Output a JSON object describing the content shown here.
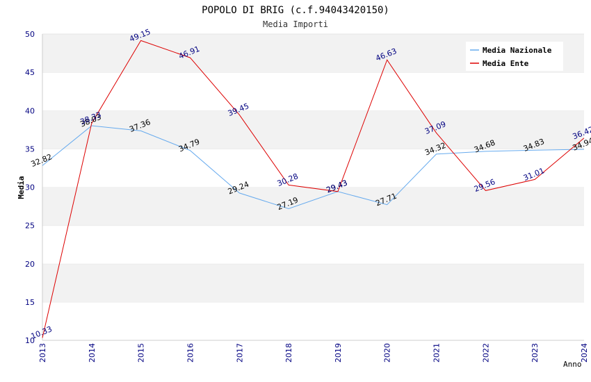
{
  "chart_data": {
    "type": "line",
    "title": "POPOLO DI BRIG (c.f.94043420150)",
    "subtitle": "Media Importi",
    "xlabel": "Anno",
    "ylabel": "Media",
    "ylim": [
      10,
      50
    ],
    "yticks": [
      10,
      15,
      20,
      25,
      30,
      35,
      40,
      45,
      50
    ],
    "x": [
      "2013",
      "2014",
      "2015",
      "2016",
      "2017",
      "2018",
      "2019",
      "2020",
      "2021",
      "2022",
      "2023",
      "2024"
    ],
    "grid": true,
    "legend_position": "top-right",
    "series": [
      {
        "name": "Media Nazionale",
        "color": "#66aaee",
        "label_color": "#000000",
        "values": [
          32.82,
          38.03,
          37.36,
          34.79,
          29.24,
          27.19,
          29.43,
          27.71,
          34.32,
          34.68,
          34.83,
          34.94
        ],
        "labels": [
          "32.82",
          "38.03",
          "37.36",
          "34.79",
          "29.24",
          "27.19",
          "29.43",
          "27.71",
          "34.32",
          "34.68",
          "34.83",
          "34.94"
        ]
      },
      {
        "name": "Media Ente",
        "color": "#dd0000",
        "label_color": "#000080",
        "values": [
          10.33,
          38.33,
          49.15,
          46.91,
          39.45,
          30.28,
          29.43,
          46.63,
          37.09,
          29.56,
          31.01,
          36.42
        ],
        "labels": [
          "10.33",
          "38.33",
          "49.15",
          "46.91",
          "39.45",
          "30.28",
          "29.43",
          "46.63",
          "37.09",
          "29.56",
          "31.01",
          "36.42"
        ]
      }
    ]
  }
}
